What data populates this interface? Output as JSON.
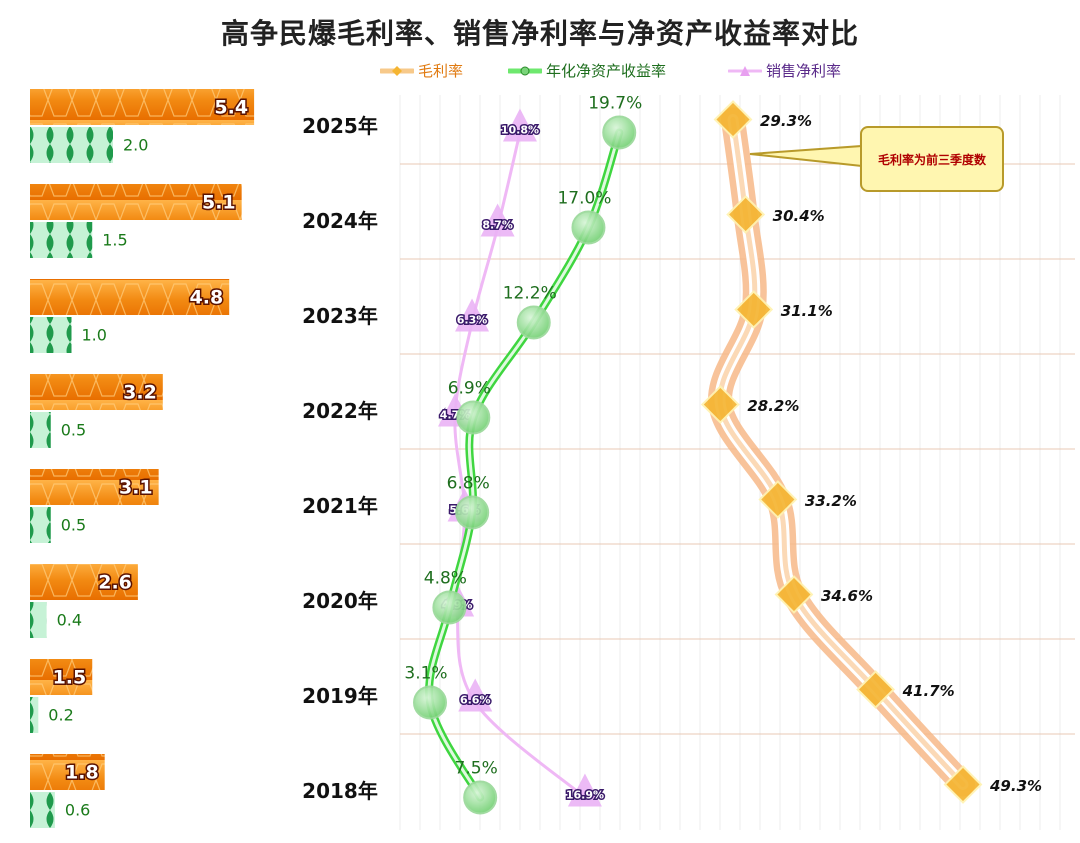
{
  "title": "高争民爆毛利率、销售净利率与净资产收益率对比",
  "legend": {
    "gross_margin": "毛利率",
    "roe": "年化净资产收益率",
    "net_margin": "销售净利率"
  },
  "annotation": "毛利率为前三季度数",
  "colors": {
    "gross_margin": "#f5b532",
    "roe": "#3fd640",
    "net_margin": "#e8a0f0",
    "bar_orange": "#f28a12",
    "bar_green": "#2ea85a"
  },
  "chart_data": {
    "type": "line",
    "categories": [
      "2025年",
      "2024年",
      "2023年",
      "2022年",
      "2021年",
      "2020年",
      "2019年",
      "2018年"
    ],
    "bars": {
      "series": [
        {
          "name": "",
          "values": [
            5.4,
            5.1,
            4.8,
            3.2,
            3.1,
            2.6,
            1.5,
            1.8
          ]
        },
        {
          "name": "",
          "values": [
            2.0,
            1.5,
            1.0,
            0.5,
            0.5,
            0.4,
            0.2,
            0.6
          ]
        }
      ]
    },
    "series": [
      {
        "name": "毛利率",
        "values": [
          29.3,
          30.4,
          31.1,
          28.2,
          33.2,
          34.6,
          41.7,
          49.3
        ],
        "labels": [
          "29.3%",
          "30.4%",
          "31.1%",
          "28.2%",
          "33.2%",
          "34.6%",
          "41.7%",
          "49.3%"
        ]
      },
      {
        "name": "年化净资产收益率",
        "values": [
          19.7,
          17.0,
          12.2,
          6.9,
          6.8,
          4.8,
          3.1,
          7.5
        ],
        "labels": [
          "19.7%",
          "17.0%",
          "12.2%",
          "6.9%",
          "6.8%",
          "4.8%",
          "3.1%",
          "7.5%"
        ]
      },
      {
        "name": "销售净利率",
        "values": [
          10.8,
          8.7,
          6.3,
          4.7,
          5.6,
          4.9,
          6.6,
          16.9
        ],
        "labels": [
          "10.8%",
          "8.7%",
          "6.3%",
          "4.7%",
          "5.6%",
          "4.9%",
          "6.6%",
          "16.9%"
        ]
      }
    ]
  }
}
